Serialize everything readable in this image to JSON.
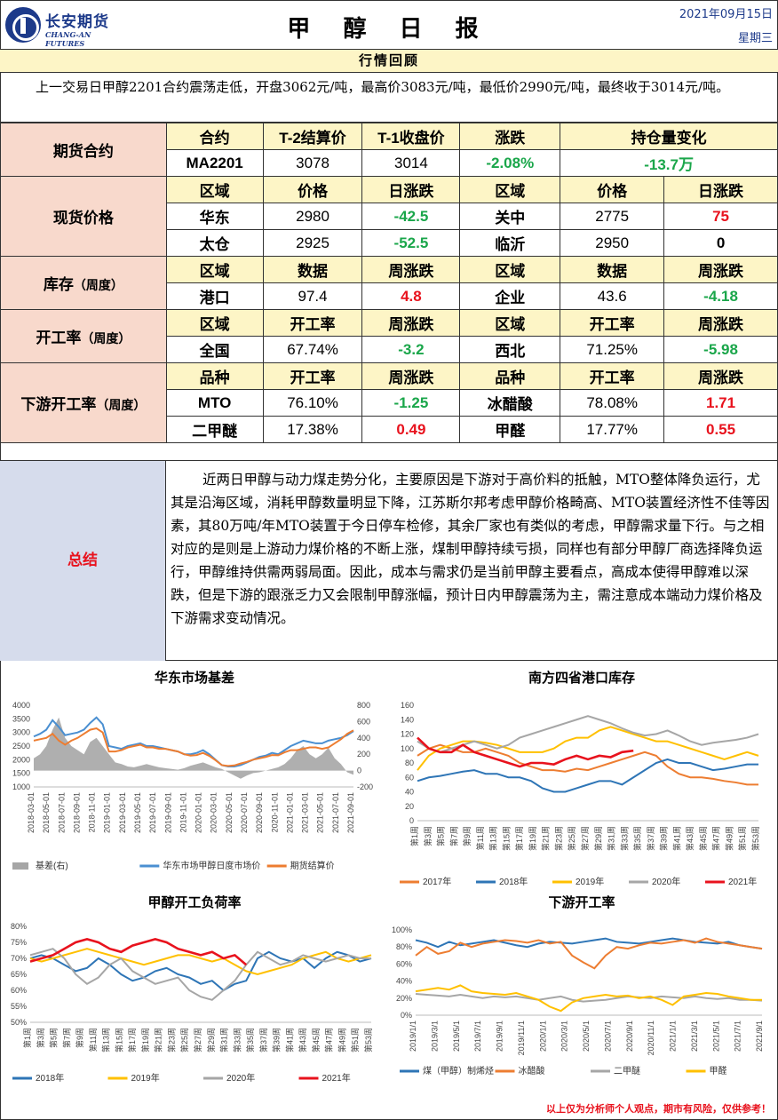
{
  "header": {
    "logo_cn": "长安期货",
    "logo_en": "CHANG-AN FUTURES",
    "title": "甲 醇 日 报",
    "date": "2021年09月15日",
    "weekday": "星期三"
  },
  "review": {
    "heading": "行情回顾",
    "text": "上一交易日甲醇2201合约震荡走低，开盘3062元/吨，最高价3083元/吨，最低价2990元/吨，最终收于3014元/吨。"
  },
  "futures": {
    "label": "期货合约",
    "headers": [
      "合约",
      "T-2结算价",
      "T-1收盘价",
      "涨跌",
      "持仓量变化"
    ],
    "contract": "MA2201",
    "settle": "3078",
    "close": "3014",
    "change": "-2.08%",
    "oi_change": "-13.7万"
  },
  "spot": {
    "label": "现货价格",
    "headers": [
      "区域",
      "价格",
      "日涨跌",
      "区域",
      "价格",
      "日涨跌"
    ],
    "rows": [
      [
        "华东",
        "2980",
        "-42.5",
        "关中",
        "2775",
        "75"
      ],
      [
        "太仓",
        "2925",
        "-52.5",
        "临沂",
        "2950",
        "0"
      ]
    ]
  },
  "inventory": {
    "label": "库存",
    "label_suffix": "（周度）",
    "headers": [
      "区域",
      "数据",
      "周涨跌",
      "区域",
      "数据",
      "周涨跌"
    ],
    "row": [
      "港口",
      "97.4",
      "4.8",
      "企业",
      "43.6",
      "-4.18"
    ]
  },
  "operating": {
    "label": "开工率",
    "label_suffix": "（周度）",
    "headers": [
      "区域",
      "开工率",
      "周涨跌",
      "区域",
      "开工率",
      "周涨跌"
    ],
    "row": [
      "全国",
      "67.74%",
      "-3.2",
      "西北",
      "71.25%",
      "-5.98"
    ]
  },
  "downstream": {
    "label": "下游开工率",
    "label_suffix": "（周度）",
    "headers": [
      "品种",
      "开工率",
      "周涨跌",
      "品种",
      "开工率",
      "周涨跌"
    ],
    "rows": [
      [
        "MTO",
        "76.10%",
        "-1.25",
        "冰醋酸",
        "78.08%",
        "1.71"
      ],
      [
        "二甲醚",
        "17.38%",
        "0.49",
        "甲醛",
        "17.77%",
        "0.55"
      ]
    ]
  },
  "summary": {
    "label": "总结",
    "text": "近两日甲醇与动力煤走势分化，主要原因是下游对于高价料的抵触，MTO整体降负运行，尤其是沿海区域，消耗甲醇数量明显下降，江苏斯尔邦考虑甲醇价格畸高、MTO装置经济性不佳等因素，其80万吨/年MTO装置于今日停车检修，其余厂家也有类似的考虑，甲醇需求量下行。与之相对应的是则是上游动力煤价格的不断上涨，煤制甲醇持续亏损，同样也有部分甲醇厂商选择降负运行，甲醇维持供需两弱局面。因此，成本与需求仍是当前甲醇主要看点，高成本使得甲醇难以深跌，但是下游的跟涨乏力又会限制甲醇涨幅，预计日内甲醇震荡为主，需注意成本端动力煤价格及下游需求变动情况。"
  },
  "disclaimer": "以上仅为分析师个人观点，期市有风险，仅供参考！",
  "chart_data": [
    {
      "type": "line",
      "title": "华东市场基差",
      "y_left_ticks": [
        "4000",
        "3500",
        "3000",
        "2500",
        "2000",
        "1500",
        "1000"
      ],
      "y_right_ticks": [
        "800",
        "600",
        "400",
        "200",
        "0",
        "-200"
      ],
      "x_ticks": [
        "2018-03-01",
        "2018-05-01",
        "2018-07-01",
        "2018-09-01",
        "2018-11-01",
        "2019-01-01",
        "2019-03-01",
        "2019-05-01",
        "2019-07-01",
        "2019-09-01",
        "2019-11-01",
        "2020-01-01",
        "2020-03-01",
        "2020-05-01",
        "2020-07-01",
        "2020-09-01",
        "2020-11-01",
        "2021-01-01",
        "2021-03-01",
        "2021-05-01",
        "2021-07-01",
        "2021-09-01"
      ],
      "ylim_left": [
        1000,
        4000
      ],
      "ylim_right": [
        -200,
        800
      ],
      "series": [
        {
          "name": "基差(右)",
          "type": "area",
          "color": "#a6a6a6",
          "values": [
            150,
            200,
            300,
            500,
            650,
            400,
            300,
            250,
            200,
            350,
            400,
            300,
            200,
            100,
            80,
            50,
            40,
            60,
            80,
            60,
            40,
            30,
            20,
            10,
            30,
            60,
            80,
            100,
            70,
            40,
            20,
            -20,
            -60,
            -100,
            -60,
            -30,
            -20,
            0,
            20,
            40,
            80,
            150,
            250,
            300,
            200,
            150,
            200,
            280,
            150,
            80,
            -20,
            -50
          ]
        },
        {
          "name": "华东市场甲醇日度市场价",
          "color": "#4a8fd1",
          "values": [
            2850,
            2950,
            3100,
            3450,
            3200,
            2900,
            2950,
            3000,
            3100,
            3350,
            3550,
            3300,
            2500,
            2450,
            2400,
            2500,
            2550,
            2600,
            2500,
            2500,
            2450,
            2400,
            2350,
            2300,
            2200,
            2200,
            2250,
            2350,
            2200,
            2000,
            1800,
            1750,
            1750,
            1800,
            1900,
            2000,
            2100,
            2150,
            2250,
            2200,
            2350,
            2500,
            2600,
            2700,
            2650,
            2600,
            2600,
            2700,
            2750,
            2800,
            2900,
            3050
          ]
        },
        {
          "name": "期货结算价",
          "color": "#ed7d31",
          "values": [
            2700,
            2750,
            2800,
            2950,
            2700,
            2550,
            2700,
            2800,
            2950,
            3100,
            3150,
            3000,
            2300,
            2300,
            2350,
            2450,
            2500,
            2550,
            2450,
            2450,
            2400,
            2400,
            2350,
            2300,
            2200,
            2150,
            2170,
            2250,
            2140,
            1980,
            1800,
            1770,
            1790,
            1860,
            1920,
            2000,
            2050,
            2100,
            2170,
            2160,
            2270,
            2350,
            2350,
            2400,
            2450,
            2450,
            2400,
            2450,
            2600,
            2750,
            2950,
            3080
          ]
        }
      ]
    },
    {
      "type": "line",
      "title": "南方四省港口库存",
      "y_ticks": [
        "160",
        "140",
        "120",
        "100",
        "80",
        "60",
        "40",
        "20",
        "0"
      ],
      "ylim": [
        0,
        160
      ],
      "x_ticks": [
        "第1周",
        "第3周",
        "第5周",
        "第7周",
        "第9周",
        "第11周",
        "第13周",
        "第15周",
        "第17周",
        "第19周",
        "第21周",
        "第23周",
        "第25周",
        "第27周",
        "第29周",
        "第31周",
        "第33周",
        "第35周",
        "第37周",
        "第39周",
        "第41周",
        "第43周",
        "第45周",
        "第47周",
        "第49周",
        "第51周",
        "第53周"
      ],
      "series": [
        {
          "name": "2017年",
          "color": "#ed7d31",
          "values": [
            90,
            100,
            105,
            100,
            95,
            95,
            100,
            95,
            90,
            80,
            75,
            70,
            70,
            68,
            72,
            70,
            75,
            80,
            85,
            90,
            95,
            90,
            75,
            65,
            60,
            60,
            58,
            55,
            53,
            50,
            50
          ]
        },
        {
          "name": "2018年",
          "color": "#2e75b6",
          "values": [
            55,
            60,
            62,
            65,
            68,
            70,
            65,
            65,
            60,
            60,
            55,
            45,
            40,
            40,
            45,
            50,
            55,
            55,
            50,
            60,
            70,
            80,
            85,
            80,
            80,
            75,
            70,
            72,
            75,
            78,
            78
          ]
        },
        {
          "name": "2019年",
          "color": "#ffc000",
          "values": [
            70,
            90,
            100,
            105,
            110,
            110,
            108,
            105,
            100,
            95,
            95,
            95,
            100,
            110,
            115,
            115,
            125,
            130,
            125,
            120,
            115,
            110,
            110,
            105,
            100,
            95,
            90,
            85,
            90,
            95,
            90
          ]
        },
        {
          "name": "2020年",
          "color": "#a6a6a6",
          "values": [
            110,
            100,
            95,
            100,
            105,
            110,
            105,
            100,
            105,
            115,
            120,
            125,
            130,
            135,
            140,
            145,
            140,
            135,
            128,
            122,
            118,
            120,
            125,
            118,
            110,
            105,
            108,
            110,
            112,
            115,
            120
          ]
        },
        {
          "name": "2021年",
          "color": "#e8121d",
          "values": [
            115,
            100,
            95,
            95,
            105,
            95,
            90,
            85,
            80,
            75,
            80,
            80,
            78,
            85,
            90,
            85,
            90,
            88,
            95,
            97
          ]
        }
      ]
    },
    {
      "type": "line",
      "title": "甲醇开工负荷率",
      "y_ticks": [
        "80%",
        "75%",
        "70%",
        "65%",
        "60%",
        "55%",
        "50%"
      ],
      "ylim": [
        50,
        80
      ],
      "x_ticks": [
        "第1周",
        "第3周",
        "第5周",
        "第7周",
        "第9周",
        "第11周",
        "第13周",
        "第15周",
        "第17周",
        "第19周",
        "第21周",
        "第23周",
        "第25周",
        "第27周",
        "第29周",
        "第31周",
        "第33周",
        "第35周",
        "第37周",
        "第39周",
        "第41周",
        "第43周",
        "第45周",
        "第47周",
        "第49周",
        "第51周",
        "第53周"
      ],
      "series": [
        {
          "name": "2018年",
          "color": "#2e75b6",
          "values": [
            70,
            71,
            70,
            68,
            66,
            67,
            70,
            68,
            65,
            63,
            64,
            66,
            67,
            65,
            64,
            62,
            63,
            60,
            62,
            63,
            70,
            72,
            70,
            69,
            70,
            67,
            70,
            72,
            71,
            69,
            70
          ]
        },
        {
          "name": "2019年",
          "color": "#ffc000",
          "values": [
            70,
            69,
            70,
            71,
            72,
            73,
            72,
            71,
            70,
            69,
            68,
            69,
            70,
            71,
            71,
            70,
            69,
            70,
            68,
            66,
            65,
            66,
            67,
            68,
            70,
            71,
            72,
            70,
            69,
            70,
            71
          ]
        },
        {
          "name": "2020年",
          "color": "#a6a6a6",
          "values": [
            71,
            72,
            73,
            70,
            65,
            62,
            64,
            68,
            70,
            66,
            64,
            62,
            63,
            64,
            60,
            58,
            57,
            60,
            63,
            68,
            72,
            70,
            68,
            69,
            71,
            70,
            69,
            70,
            71,
            70,
            70
          ]
        },
        {
          "name": "2021年",
          "color": "#e8121d",
          "values": [
            69,
            70,
            71,
            73,
            75,
            76,
            75,
            73,
            72,
            74,
            75,
            76,
            75,
            73,
            72,
            71,
            72,
            70,
            71,
            68
          ]
        }
      ]
    },
    {
      "type": "line",
      "title": "下游开工率",
      "y_ticks": [
        "100%",
        "80%",
        "60%",
        "40%",
        "20%",
        "0%"
      ],
      "ylim": [
        0,
        100
      ],
      "x_ticks": [
        "2019/1/1",
        "2019/3/1",
        "2019/5/1",
        "2019/7/1",
        "2019/9/1",
        "2019/11/1",
        "2020/1/1",
        "2020/3/1",
        "2020/5/1",
        "2020/7/1",
        "2020/9/1",
        "2020/11/1",
        "2021/1/1",
        "2021/3/1",
        "2021/5/1",
        "2021/7/1",
        "2021/9/1"
      ],
      "series": [
        {
          "name": "煤（甲醇）制烯烃",
          "color": "#2e75b6",
          "values": [
            88,
            85,
            80,
            86,
            82,
            84,
            86,
            88,
            85,
            82,
            80,
            84,
            86,
            85,
            84,
            86,
            88,
            90,
            86,
            85,
            84,
            86,
            88,
            90,
            88,
            86,
            85,
            84,
            86,
            82,
            80,
            78
          ]
        },
        {
          "name": "冰醋酸",
          "color": "#ed7d31",
          "values": [
            70,
            80,
            72,
            75,
            85,
            80,
            84,
            86,
            88,
            87,
            85,
            88,
            84,
            86,
            70,
            62,
            55,
            70,
            80,
            78,
            82,
            85,
            84,
            86,
            88,
            85,
            90,
            86,
            84,
            82,
            80,
            78
          ]
        },
        {
          "name": "二甲醚",
          "color": "#a6a6a6",
          "values": [
            25,
            24,
            23,
            22,
            24,
            22,
            20,
            22,
            21,
            22,
            20,
            18,
            20,
            22,
            18,
            16,
            17,
            18,
            20,
            22,
            21,
            20,
            22,
            21,
            20,
            22,
            20,
            19,
            20,
            18,
            18,
            17
          ]
        },
        {
          "name": "甲醛",
          "color": "#ffc000",
          "values": [
            28,
            30,
            32,
            30,
            35,
            28,
            26,
            25,
            24,
            26,
            22,
            18,
            10,
            5,
            15,
            20,
            22,
            24,
            22,
            23,
            20,
            22,
            18,
            12,
            22,
            24,
            26,
            25,
            22,
            20,
            18,
            18
          ]
        }
      ]
    }
  ]
}
